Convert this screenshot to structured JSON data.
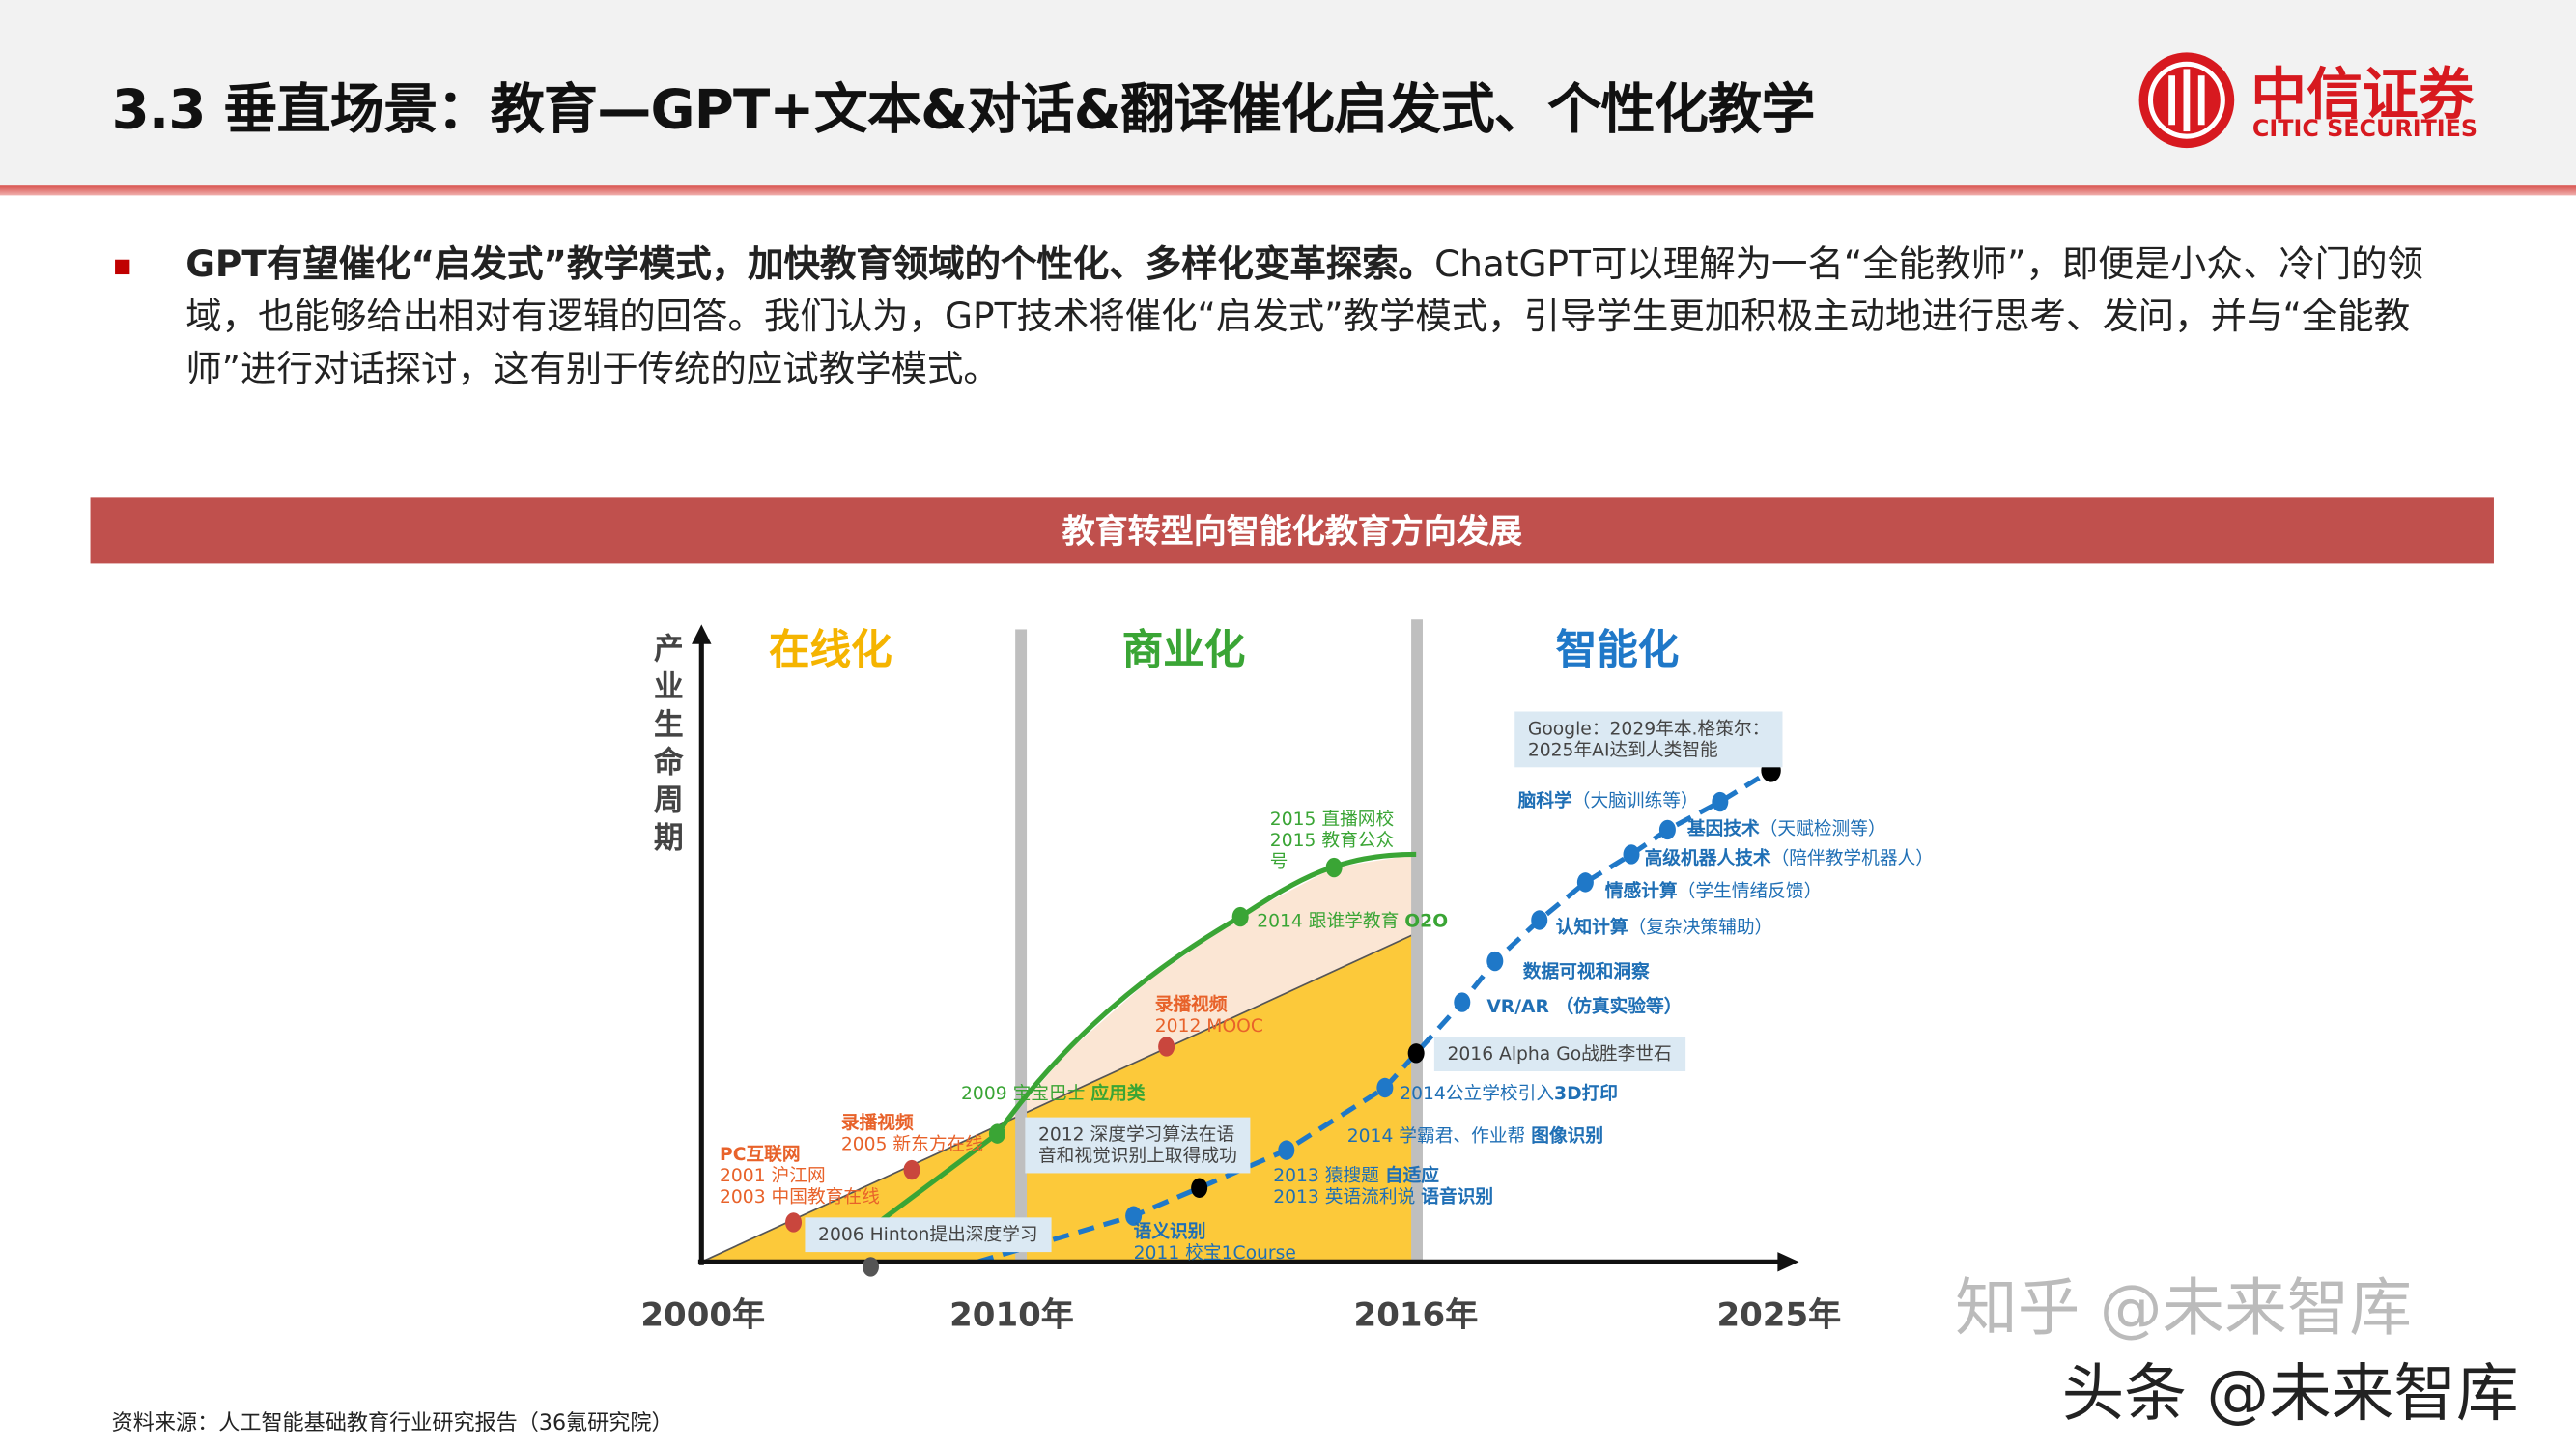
{
  "header": {
    "title": "3.3 垂直场景：教育—GPT+文本&对话&翻译催化启发式、个性化教学",
    "logo_cn": "中信证券",
    "logo_en": "CITIC SECURITIES"
  },
  "body": {
    "bold_lead": "GPT有望催化“启发式”教学模式，加快教育领域的个性化、多样化变革探索。",
    "text": "ChatGPT可以理解为一名“全能教师”，即便是小众、冷门的领域，也能够给出相对有逻辑的回答。我们认为，GPT技术将催化“启发式”教学模式，引导学生更加积极主动地进行思考、发问，并与“全能教师”进行对话探讨，这有别于传统的应试教学模式。"
  },
  "banner": "教育转型向智能化教育方向发展",
  "diagram": {
    "y_axis_label": "产业生命周期",
    "x_labels": [
      "2000年",
      "2010年",
      "2016年",
      "2025年"
    ],
    "phases": [
      {
        "label": "在线化",
        "color": "#f5b400"
      },
      {
        "label": "商业化",
        "color": "#3aa535"
      },
      {
        "label": "智能化",
        "color": "#1f78c8"
      }
    ],
    "online": {
      "pc_title": "PC互联网",
      "pc1": "2001 沪江网",
      "pc2": "2003 中国教育在线",
      "rec_title": "录播视频",
      "rec1": "2005 新东方在线"
    },
    "commercial": {
      "app_year": "2009 宝宝巴士",
      "app_tag": "应用类",
      "mooc_title": "录播视频",
      "mooc": "2012 MOOC",
      "o2o_year": "2014 跟谁学教育",
      "o2o_tag": "O2O",
      "live1": "2015 直播网校",
      "live2": "2015 教育公众",
      "live3": "号"
    },
    "ai": {
      "hinton": "2006 Hinton提出深度学习",
      "dl2012_1": "2012 深度学习算法在语",
      "dl2012_2": "音和视觉识别上取得成功",
      "sem_tag": "语义识别",
      "sem_year": "2011 校宝1Course",
      "adapt_year": "2013 猿搜题",
      "adapt_tag": "自适应",
      "speech_year": "2013 英语流利说",
      "speech_tag": "语音识别",
      "img_year": "2014 学霸君、作业帮",
      "img_tag": "图像识别",
      "print_year": "2014公立学校引入",
      "print_tag": "3D打印",
      "alphago": "2016 Alpha Go战胜李世石",
      "vr_tag": "VR/AR",
      "vr_note": "（仿真实验等）",
      "data_tag": "数据可视和洞察",
      "cog_tag": "认知计算",
      "cog_note": "（复杂决策辅助）",
      "emo_tag": "情感计算",
      "emo_note": "（学生情绪反馈）",
      "robot_tag": "高级机器人技术",
      "robot_note": "（陪伴教学机器人）",
      "gene_tag": "基因技术",
      "gene_note": "（天赋检测等）",
      "brain_tag": "脑科学",
      "brain_note": "（大脑训练等）",
      "google1": "Google：2029年本.格策尔：",
      "google2": "2025年AI达到人类智能"
    }
  },
  "source": "资料来源：人工智能基础教育行业研究报告（36氪研究院）",
  "watermarks": [
    "知乎 @未来智库",
    "头条 @未来智库"
  ]
}
